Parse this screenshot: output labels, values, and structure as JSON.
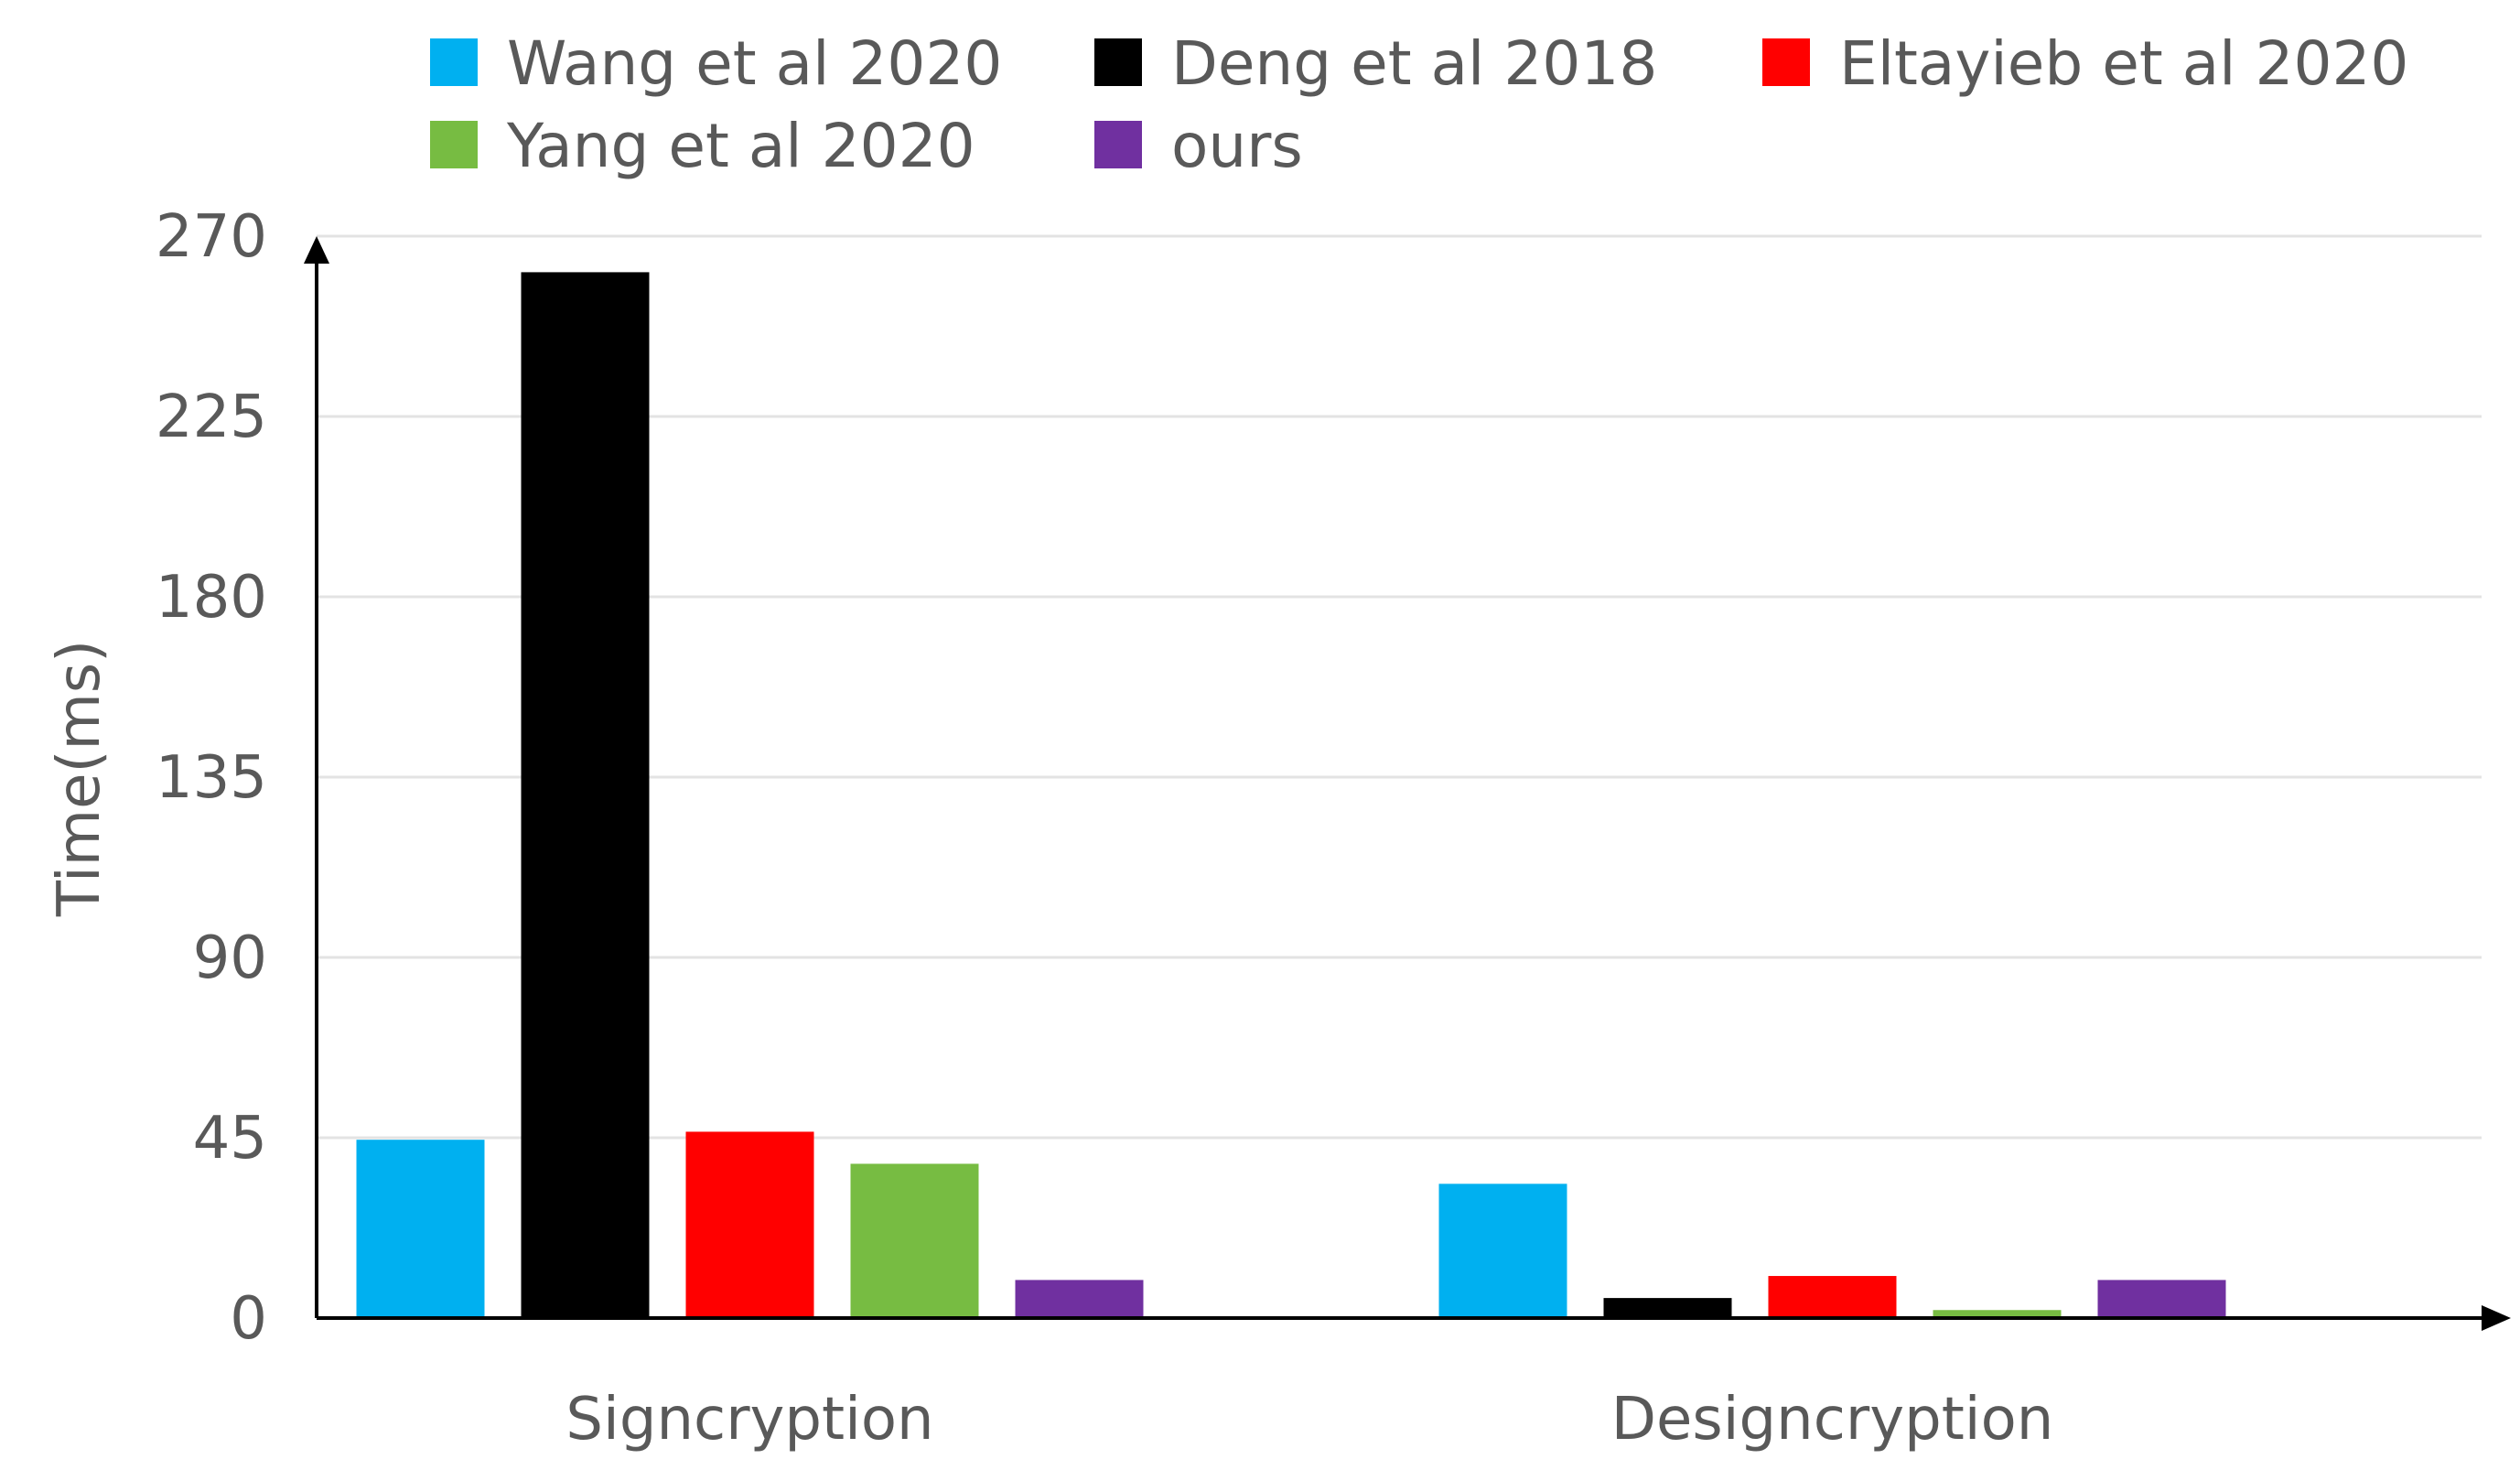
{
  "chart_data": {
    "type": "bar",
    "title": "",
    "xlabel": "",
    "ylabel": "Time(ms)",
    "categories": [
      "Signcryption",
      "Designcryption"
    ],
    "ylim": [
      0,
      270
    ],
    "yticks": [
      0,
      45,
      90,
      135,
      180,
      225,
      270
    ],
    "grid": true,
    "legend_position": "top",
    "series": [
      {
        "name": "Wang et al 2020",
        "color": "#00B0F0",
        "values": [
          44.5,
          33.5
        ]
      },
      {
        "name": "Deng et al 2018",
        "color": "#000000",
        "values": [
          261,
          5
        ]
      },
      {
        "name": "Eltayieb et al 2020",
        "color": "#FF0000",
        "values": [
          46.5,
          10.5
        ]
      },
      {
        "name": "Yang et al 2020",
        "color": "#77BC42",
        "values": [
          38.5,
          2
        ]
      },
      {
        "name": "ours",
        "color": "#7030A0",
        "values": [
          9.5,
          9.5
        ]
      }
    ]
  }
}
